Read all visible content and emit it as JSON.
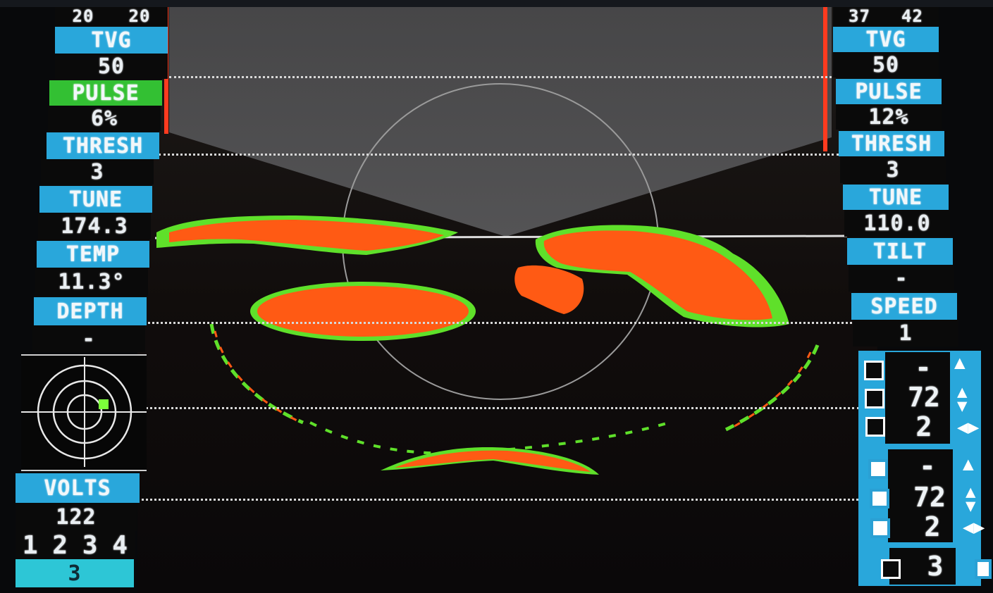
{
  "left_panel": {
    "top_values": [
      "20",
      "20"
    ],
    "tvg_label": "TVG",
    "tvg_value": "50",
    "pulse_label": "PULSE",
    "pulse_value": "6%",
    "thresh_label": "THRESH",
    "thresh_value": "3",
    "tune_label": "TUNE",
    "tune_value": "174.3",
    "temp_label": "TEMP",
    "temp_value": "11.3°",
    "depth_label": "DEPTH",
    "depth_value": "-",
    "volts_label": "VOLTS",
    "volts_value": "122",
    "channels": [
      "1",
      "2",
      "3",
      "4"
    ],
    "selected_channel": "3"
  },
  "right_panel": {
    "top_values": [
      "37",
      "42"
    ],
    "tvg_label": "TVG",
    "tvg_value": "50",
    "pulse_label": "PULSE",
    "pulse_value": "12%",
    "thresh_label": "THRESH",
    "thresh_value": "3",
    "tune_label": "TUNE",
    "tune_value": "110.0",
    "tilt_label": "TILT",
    "tilt_value": "-",
    "speed_label": "SPEED",
    "speed_value": "1",
    "group1": {
      "dash": "-",
      "value1": "72",
      "value2": "2"
    },
    "group2": {
      "dash": "-",
      "value1": "72",
      "value2": "2"
    },
    "bottom_value": "3"
  },
  "colors": {
    "header_blue": "#29a7db",
    "pulse_green": "#33c033",
    "echo_orange": "#ff5a14",
    "echo_green": "#5fe02a",
    "marker_red": "#ff3b1f"
  },
  "icons": [
    "target-rings-icon",
    "square-marker-icon",
    "tilt-up-icon",
    "up-down-arrow-icon",
    "left-right-arrow-icon"
  ]
}
